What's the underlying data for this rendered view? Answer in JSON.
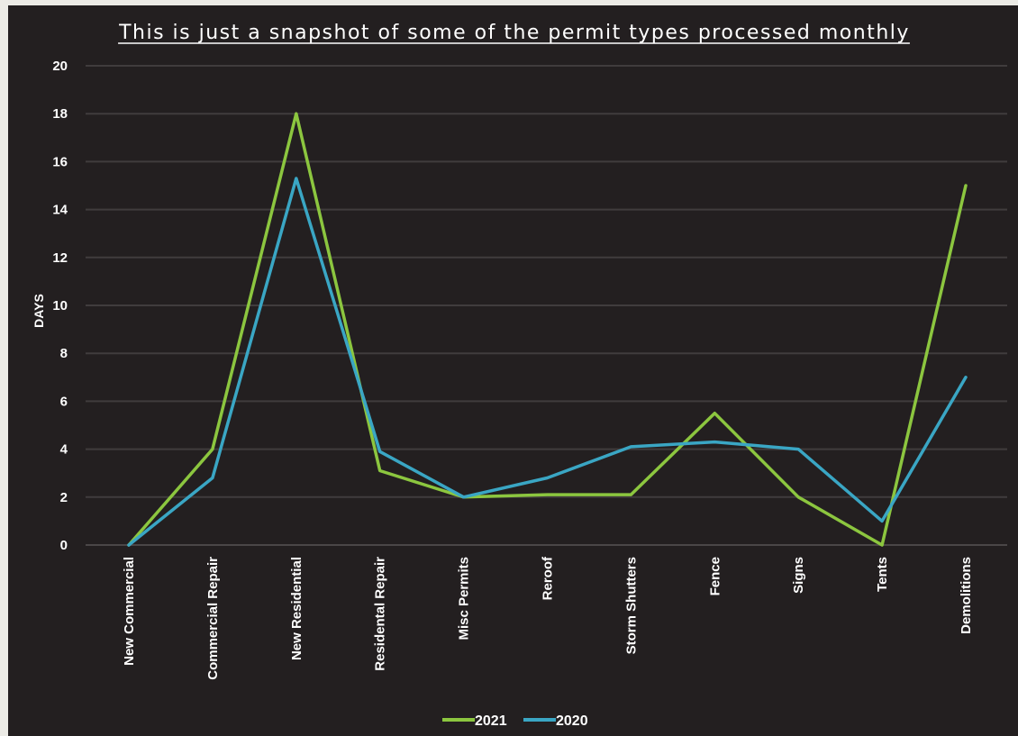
{
  "chart_data": {
    "type": "line",
    "title": "This is just a snapshot of some of the permit types processed monthly",
    "xlabel": "",
    "ylabel": "DAYS",
    "ylim": [
      0,
      20
    ],
    "ytick_step": 2,
    "yticks": [
      "0",
      "2",
      "4",
      "6",
      "8",
      "10",
      "12",
      "14",
      "16",
      "18",
      "20"
    ],
    "grid": true,
    "legend_position": "bottom-center",
    "categories": [
      "New Commercial",
      "Commercial Repair",
      "New Residential",
      "Residental Repair",
      "Misc Permits",
      "Reroof",
      "Storm Shutters",
      "Fence",
      "Signs",
      "Tents",
      "Demolitions"
    ],
    "series": [
      {
        "name": "2021",
        "color": "#8cc63f",
        "values": [
          0,
          4,
          18,
          3.1,
          2,
          2.1,
          2.1,
          5.5,
          2,
          0,
          15
        ]
      },
      {
        "name": "2020",
        "color": "#3aa6c4",
        "values": [
          0,
          2.8,
          15.3,
          3.9,
          2,
          2.8,
          4.1,
          4.3,
          4,
          1,
          7
        ]
      }
    ]
  },
  "colors": {
    "background": "#231f20",
    "gridline": "#403c3d",
    "text": "#ffffff"
  }
}
